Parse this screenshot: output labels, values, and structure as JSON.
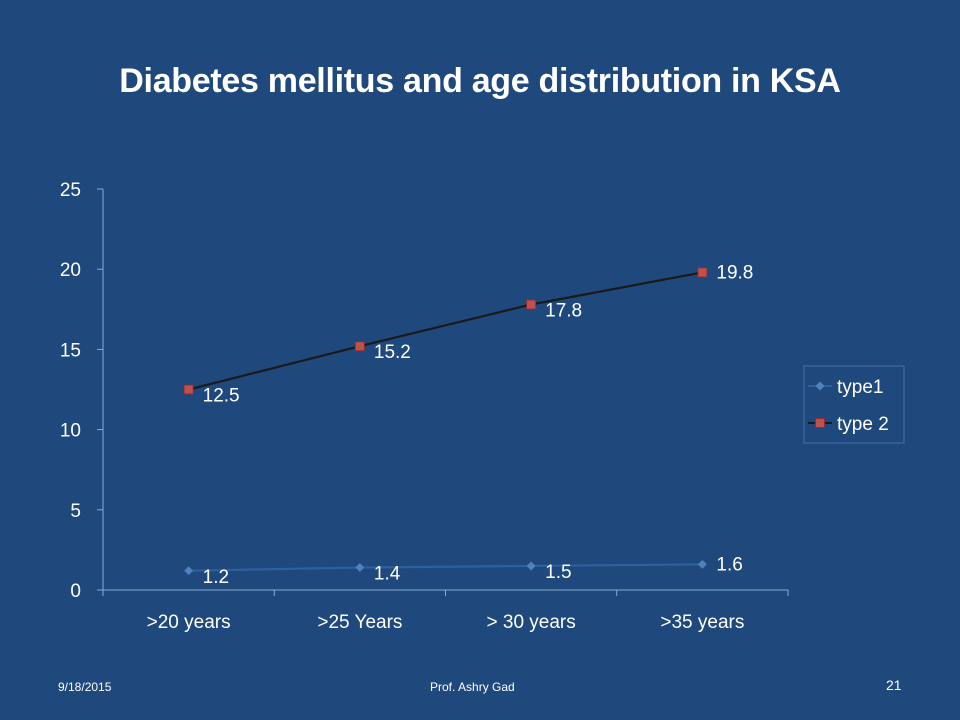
{
  "slide": {
    "title": "Diabetes mellitus and age distribution in KSA",
    "footer_date": "9/18/2015",
    "footer_author": "Prof. Ashry Gad",
    "page_number": "21"
  },
  "colors": {
    "background": "#1f497d",
    "axis": "#8eaad4",
    "text": "#ffffff",
    "type1_line": "#2e5f9e",
    "type1_marker": "#4f81bd",
    "type2_line": "#1a1a1a",
    "type2_marker": "#c0504d",
    "legend_border": "#4a6fa5"
  },
  "chart_data": {
    "type": "line",
    "title": "",
    "xlabel": "",
    "ylabel": "",
    "categories": [
      ">20 years",
      ">25 Years",
      "> 30 years",
      ">35 years"
    ],
    "ylim": [
      0,
      25
    ],
    "yticks": [
      "0",
      "5",
      "10",
      "15",
      "20",
      "25"
    ],
    "grid": false,
    "legend_position": "right",
    "series": [
      {
        "name": "type1",
        "values": [
          1.2,
          1.4,
          1.5,
          1.6
        ],
        "labels": [
          "1.2",
          "1.4",
          "1.5",
          "1.6"
        ],
        "marker": "diamond"
      },
      {
        "name": "type 2",
        "values": [
          12.5,
          15.2,
          17.8,
          19.8
        ],
        "labels": [
          "12.5",
          "15.2",
          "17.8",
          "19.8"
        ],
        "marker": "square"
      }
    ]
  }
}
